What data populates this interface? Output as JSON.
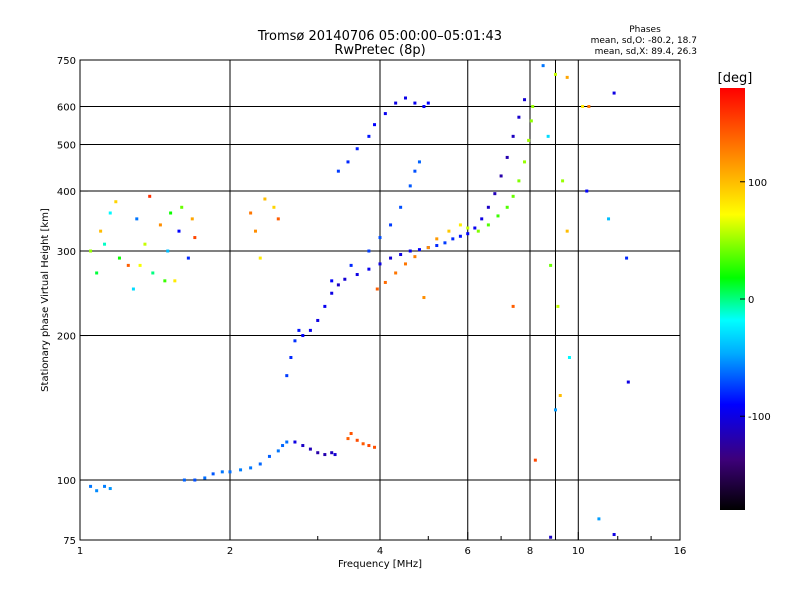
{
  "title_line1": "Tromsø 20140706 05:00:00–05:01:43",
  "title_line2": "RwPretec (8p)",
  "stats": {
    "heading": "Phases",
    "line_o": "mean, sd,O: -80.2, 18.7",
    "line_x": "mean, sd,X: 89.4, 26.3"
  },
  "chart_data": {
    "type": "scatter",
    "xlabel": "Frequency [MHz]",
    "ylabel": "Stationary phase Virtual Height [km]",
    "x_scale": "log",
    "y_scale": "log",
    "xlim": [
      1,
      16
    ],
    "ylim": [
      75,
      750
    ],
    "x_ticks": [
      1,
      2,
      4,
      6,
      8,
      10,
      16
    ],
    "x_tick_labels": [
      "1",
      "2",
      "4",
      "6",
      "8",
      "10",
      "16"
    ],
    "x_minor_ticks": [
      3,
      5,
      7,
      9,
      12,
      14
    ],
    "y_ticks": [
      75,
      100,
      200,
      300,
      400,
      500,
      600,
      750
    ],
    "y_tick_labels": [
      "75",
      "100",
      "200",
      "300",
      "400",
      "500",
      "600",
      "750"
    ],
    "grid_x": [
      2,
      4,
      6,
      8,
      9,
      10
    ],
    "grid_y": [
      100,
      200,
      300,
      400,
      500,
      600
    ],
    "colorbar": {
      "label": "[deg]",
      "range": [
        -180,
        180
      ],
      "ticks": [
        100,
        0,
        -100
      ],
      "tick_labels": [
        "100",
        "0",
        "-100"
      ]
    },
    "series": [
      {
        "values": [
          [
            1.05,
            97,
            -60
          ],
          [
            1.08,
            95,
            -55
          ],
          [
            1.12,
            97,
            -58
          ],
          [
            1.15,
            96,
            -52
          ],
          [
            1.62,
            100,
            -65
          ],
          [
            1.7,
            100,
            -70
          ],
          [
            1.78,
            101,
            -62
          ],
          [
            1.85,
            103,
            -68
          ],
          [
            1.93,
            104,
            -60
          ],
          [
            2.0,
            104,
            -62
          ],
          [
            2.1,
            105,
            -58
          ],
          [
            2.2,
            106,
            -60
          ],
          [
            2.3,
            108,
            -64
          ],
          [
            2.4,
            112,
            -66
          ],
          [
            2.5,
            115,
            -60
          ],
          [
            2.55,
            118,
            -64
          ],
          [
            2.6,
            120,
            -62
          ]
        ]
      },
      {
        "values": [
          [
            2.7,
            120,
            -100
          ],
          [
            2.8,
            118,
            -110
          ],
          [
            2.9,
            116,
            -115
          ],
          [
            3.0,
            114,
            -120
          ],
          [
            3.1,
            113,
            -118
          ],
          [
            3.2,
            114,
            -112
          ],
          [
            3.25,
            113,
            -105
          ]
        ]
      },
      {
        "values": [
          [
            3.45,
            122,
            140
          ],
          [
            3.5,
            125,
            145
          ],
          [
            3.6,
            121,
            148
          ],
          [
            3.7,
            119,
            142
          ],
          [
            3.8,
            118,
            150
          ],
          [
            3.9,
            117,
            146
          ]
        ]
      },
      {
        "values": [
          [
            2.6,
            165,
            -75
          ],
          [
            2.65,
            180,
            -80
          ],
          [
            2.7,
            195,
            -78
          ],
          [
            2.75,
            205,
            -85
          ],
          [
            2.8,
            200,
            -90
          ],
          [
            2.9,
            205,
            -95
          ],
          [
            3.0,
            215,
            -100
          ],
          [
            3.1,
            230,
            -95
          ],
          [
            3.2,
            245,
            -100
          ],
          [
            3.3,
            255,
            -110
          ],
          [
            3.4,
            262,
            -105
          ],
          [
            3.6,
            268,
            -100
          ],
          [
            3.8,
            275,
            -95
          ],
          [
            4.0,
            282,
            -100
          ],
          [
            4.2,
            290,
            -105
          ],
          [
            4.4,
            295,
            -100
          ],
          [
            4.6,
            300,
            -95
          ],
          [
            4.8,
            302,
            -90
          ],
          [
            5.0,
            305,
            -85
          ],
          [
            5.2,
            308,
            -80
          ],
          [
            5.4,
            312,
            -75
          ],
          [
            5.6,
            318,
            -80
          ],
          [
            5.8,
            322,
            -85
          ],
          [
            6.0,
            326,
            -90
          ],
          [
            6.2,
            335,
            -95
          ],
          [
            6.4,
            350,
            -100
          ],
          [
            6.6,
            370,
            -110
          ],
          [
            6.8,
            395,
            -115
          ],
          [
            7.0,
            430,
            -120
          ],
          [
            7.2,
            470,
            -118
          ],
          [
            7.4,
            520,
            -112
          ],
          [
            7.6,
            570,
            -108
          ],
          [
            7.8,
            620,
            -105
          ]
        ]
      },
      {
        "values": [
          [
            3.95,
            250,
            140
          ],
          [
            4.1,
            258,
            135
          ],
          [
            4.3,
            270,
            130
          ],
          [
            4.5,
            282,
            130
          ],
          [
            4.7,
            292,
            125
          ],
          [
            5.0,
            305,
            120
          ],
          [
            5.2,
            318,
            115
          ],
          [
            5.5,
            330,
            95
          ],
          [
            5.8,
            340,
            80
          ],
          [
            6.0,
            335,
            60
          ],
          [
            6.3,
            330,
            45
          ],
          [
            6.6,
            340,
            35
          ],
          [
            6.9,
            355,
            30
          ],
          [
            7.2,
            370,
            35
          ],
          [
            7.4,
            390,
            40
          ],
          [
            7.6,
            420,
            45
          ],
          [
            7.8,
            460,
            50
          ],
          [
            7.95,
            510,
            52
          ],
          [
            8.05,
            560,
            48
          ],
          [
            8.1,
            600,
            50
          ]
        ]
      },
      {
        "values": [
          [
            3.2,
            260,
            -90
          ],
          [
            3.5,
            280,
            -80
          ],
          [
            3.8,
            300,
            -75
          ],
          [
            4.0,
            320,
            -70
          ],
          [
            4.2,
            340,
            -75
          ],
          [
            4.4,
            370,
            -70
          ],
          [
            4.6,
            410,
            -68
          ],
          [
            4.7,
            440,
            -70
          ],
          [
            4.8,
            460,
            -65
          ]
        ]
      },
      {
        "values": [
          [
            3.3,
            440,
            -75
          ],
          [
            3.45,
            460,
            -80
          ],
          [
            3.6,
            490,
            -82
          ],
          [
            3.8,
            520,
            -85
          ],
          [
            3.9,
            550,
            -90
          ],
          [
            4.1,
            580,
            -95
          ],
          [
            4.3,
            610,
            -100
          ],
          [
            4.5,
            625,
            -98
          ],
          [
            4.7,
            610,
            -95
          ],
          [
            4.9,
            600,
            -92
          ],
          [
            5.0,
            610,
            -90
          ]
        ]
      },
      {
        "values": [
          [
            1.05,
            300,
            50
          ],
          [
            1.1,
            330,
            100
          ],
          [
            1.15,
            360,
            -20
          ],
          [
            1.2,
            290,
            20
          ],
          [
            1.25,
            280,
            140
          ],
          [
            1.3,
            350,
            -60
          ],
          [
            1.35,
            310,
            60
          ],
          [
            1.4,
            270,
            0
          ],
          [
            1.45,
            340,
            120
          ],
          [
            1.5,
            300,
            -40
          ],
          [
            1.55,
            260,
            80
          ],
          [
            1.6,
            370,
            40
          ],
          [
            1.65,
            290,
            -80
          ],
          [
            1.7,
            320,
            150
          ],
          [
            1.08,
            270,
            10
          ],
          [
            1.18,
            380,
            90
          ],
          [
            1.28,
            250,
            -30
          ],
          [
            1.38,
            390,
            160
          ],
          [
            1.48,
            260,
            30
          ],
          [
            1.58,
            330,
            -90
          ],
          [
            1.68,
            350,
            110
          ],
          [
            1.12,
            310,
            -10
          ],
          [
            1.32,
            280,
            70
          ],
          [
            1.52,
            360,
            20
          ]
        ]
      },
      {
        "values": [
          [
            2.2,
            360,
            130
          ],
          [
            2.25,
            330,
            120
          ],
          [
            2.35,
            385,
            100
          ],
          [
            2.45,
            370,
            90
          ],
          [
            2.5,
            350,
            140
          ],
          [
            2.3,
            290,
            80
          ]
        ]
      },
      {
        "values": [
          [
            8.5,
            730,
            -60
          ],
          [
            9.0,
            700,
            60
          ],
          [
            9.5,
            690,
            110
          ],
          [
            10.2,
            600,
            80
          ],
          [
            10.5,
            600,
            130
          ],
          [
            11.8,
            640,
            -100
          ],
          [
            8.7,
            520,
            -30
          ],
          [
            9.3,
            420,
            50
          ],
          [
            9.5,
            330,
            100
          ],
          [
            10.4,
            400,
            -90
          ],
          [
            11.5,
            350,
            -40
          ],
          [
            12.5,
            290,
            -80
          ],
          [
            8.8,
            280,
            40
          ],
          [
            9.1,
            230,
            60
          ],
          [
            9.6,
            180,
            -20
          ],
          [
            9.2,
            150,
            100
          ],
          [
            9.0,
            140,
            -50
          ],
          [
            12.6,
            160,
            -100
          ],
          [
            8.2,
            110,
            150
          ],
          [
            11.0,
            83,
            -50
          ],
          [
            11.8,
            77,
            -100
          ],
          [
            8.8,
            76,
            -110
          ],
          [
            4.9,
            240,
            120
          ],
          [
            7.4,
            230,
            140
          ]
        ]
      }
    ]
  }
}
